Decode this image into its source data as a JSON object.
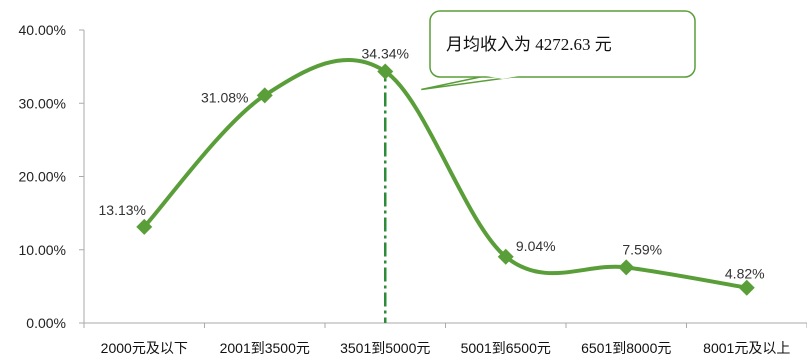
{
  "chart_data": {
    "type": "line",
    "categories": [
      "2000元及以下",
      "2001到3500元",
      "3501到5000元",
      "5001到6500元",
      "6501到8000元",
      "8001元及以上"
    ],
    "series": [
      {
        "values": [
          13.13,
          31.08,
          34.34,
          9.04,
          7.59,
          4.82
        ],
        "data_labels": [
          "13.13%",
          "31.08%",
          "34.34%",
          "9.04%",
          "7.59%",
          "4.82%"
        ]
      }
    ],
    "ylim": [
      0,
      40
    ],
    "yticks": [
      "0.00%",
      "10.00%",
      "20.00%",
      "30.00%",
      "40.00%"
    ],
    "smooth": true,
    "grid": false,
    "marker": "diamond",
    "color": "#5a9e3a",
    "reference_line": {
      "category_index": 2,
      "style": "dash-dot"
    },
    "annotation": "月均收入为 4272.63  元"
  }
}
